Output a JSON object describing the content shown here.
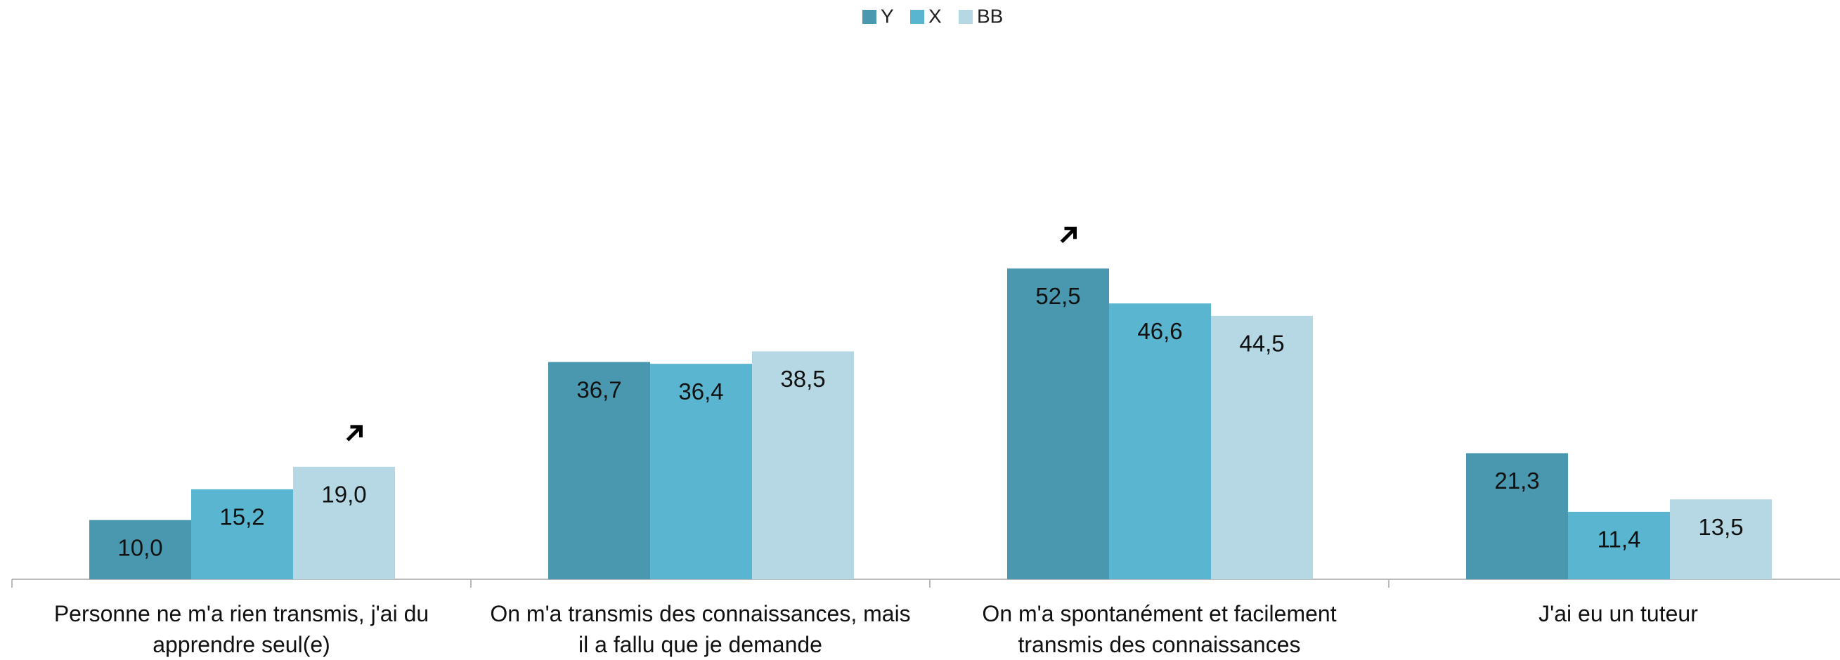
{
  "chart_data": {
    "type": "bar",
    "categories": [
      "Personne ne m'a rien transmis, j'ai du apprendre seul(e)",
      "On m'a transmis des connaissances, mais il a fallu que je demande",
      "On m'a spontanément et facilement transmis des connaissances",
      "J'ai eu un tuteur"
    ],
    "series": [
      {
        "name": "Y",
        "color": "#4a98b0",
        "values": [
          10.0,
          36.7,
          52.5,
          21.3
        ],
        "value_labels": [
          "10,0",
          "36,7",
          "52,5",
          "21,3"
        ]
      },
      {
        "name": "X",
        "color": "#5ab5d0",
        "values": [
          15.2,
          36.4,
          46.6,
          11.4
        ],
        "value_labels": [
          "15,2",
          "36,4",
          "46,6",
          "11,4"
        ]
      },
      {
        "name": "BB",
        "color": "#b5d8e4",
        "values": [
          19.0,
          38.5,
          44.5,
          13.5
        ],
        "value_labels": [
          "19,0",
          "38,5",
          "44,5",
          "13,5"
        ]
      }
    ],
    "legend": "top"
  }
}
